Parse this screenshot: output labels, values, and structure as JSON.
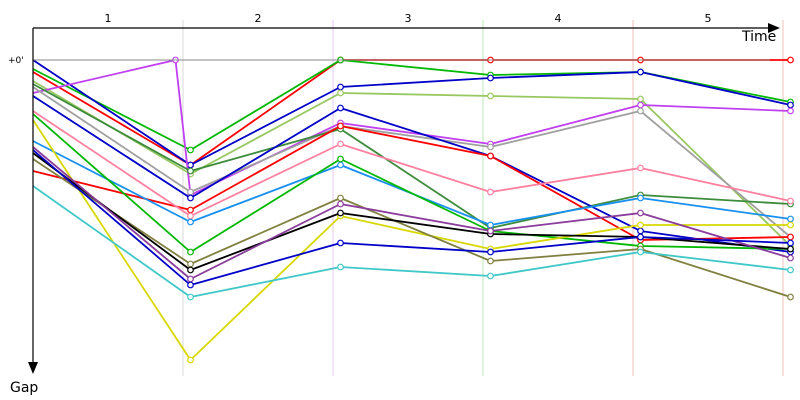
{
  "chart_data": {
    "type": "line",
    "xlabel": "Time",
    "ylabel": "Gap",
    "zero_label": "+0'",
    "laps": [
      "1",
      "2",
      "3",
      "4",
      "5"
    ],
    "x_range": [
      0,
      5.5
    ],
    "y_range": [
      0,
      100
    ],
    "lap_boundary_colors": [
      "#d8d8d8",
      "#e6c8f0",
      "#b8e8b8",
      "#f0c0c0",
      "#f0c0c0",
      "#f0c0c0"
    ],
    "series": [
      {
        "color": "#ff0000",
        "points": [
          [
            0,
            4
          ],
          [
            1.05,
            35
          ],
          [
            2.05,
            0
          ],
          [
            3.05,
            0
          ],
          [
            4.05,
            0
          ],
          [
            5.05,
            0
          ]
        ]
      },
      {
        "color": "#00b800",
        "points": [
          [
            0,
            3
          ],
          [
            1.05,
            30
          ],
          [
            2.05,
            0
          ],
          [
            3.05,
            5
          ],
          [
            4.05,
            4
          ],
          [
            5.05,
            14
          ]
        ]
      },
      {
        "color": "#0000c8",
        "points": [
          [
            0,
            0
          ],
          [
            1.05,
            35
          ],
          [
            2.05,
            9
          ],
          [
            3.05,
            6
          ],
          [
            4.05,
            4
          ],
          [
            5.05,
            15
          ]
        ]
      },
      {
        "color": "#98c860",
        "points": [
          [
            0,
            7
          ],
          [
            1.05,
            38
          ],
          [
            2.05,
            11
          ],
          [
            3.05,
            12
          ],
          [
            4.05,
            13
          ],
          [
            5.05,
            62
          ]
        ]
      },
      {
        "color": "#c040f0",
        "points": [
          [
            0,
            11
          ],
          [
            0.95,
            0
          ],
          [
            1.05,
            45
          ],
          [
            2.05,
            21
          ],
          [
            3.05,
            28
          ],
          [
            4.05,
            15
          ],
          [
            5.05,
            17
          ]
        ]
      },
      {
        "color": "#a0a0a0",
        "points": [
          [
            0,
            9
          ],
          [
            1.05,
            44
          ],
          [
            2.05,
            22
          ],
          [
            3.05,
            29
          ],
          [
            4.05,
            17
          ],
          [
            5.05,
            59
          ]
        ]
      },
      {
        "color": "#3c8c3c",
        "points": [
          [
            0,
            8
          ],
          [
            1.05,
            37
          ],
          [
            2.05,
            23
          ],
          [
            3.05,
            56
          ],
          [
            4.05,
            45
          ],
          [
            5.05,
            48
          ]
        ]
      },
      {
        "color": "#0000c8",
        "points": [
          [
            0,
            12
          ],
          [
            1.05,
            46
          ],
          [
            2.05,
            16
          ],
          [
            3.05,
            32
          ],
          [
            4.05,
            57
          ],
          [
            5.05,
            64
          ]
        ]
      },
      {
        "color": "#ff0000",
        "points": [
          [
            0,
            37
          ],
          [
            1.05,
            50
          ],
          [
            2.05,
            22
          ],
          [
            3.05,
            32
          ],
          [
            4.05,
            60
          ],
          [
            5.05,
            59
          ]
        ]
      },
      {
        "color": "#ff80a0",
        "points": [
          [
            0,
            17
          ],
          [
            1.05,
            52
          ],
          [
            2.05,
            28
          ],
          [
            3.05,
            44
          ],
          [
            4.05,
            36
          ],
          [
            5.05,
            47
          ]
        ]
      },
      {
        "color": "#1890f0",
        "points": [
          [
            0,
            27
          ],
          [
            1.05,
            54
          ],
          [
            2.05,
            35
          ],
          [
            3.05,
            55
          ],
          [
            4.05,
            46
          ],
          [
            5.05,
            53
          ]
        ]
      },
      {
        "color": "#00b800",
        "points": [
          [
            0,
            18
          ],
          [
            1.05,
            64
          ],
          [
            2.05,
            33
          ],
          [
            3.05,
            57
          ],
          [
            4.05,
            62
          ],
          [
            5.05,
            63
          ]
        ]
      },
      {
        "color": "#d8d800",
        "points": [
          [
            0,
            20
          ],
          [
            1.05,
            100
          ],
          [
            2.05,
            52
          ],
          [
            3.05,
            63
          ],
          [
            4.05,
            55
          ],
          [
            5.05,
            55
          ]
        ]
      },
      {
        "color": "#808040",
        "points": [
          [
            0,
            33
          ],
          [
            1.05,
            68
          ],
          [
            2.05,
            46
          ],
          [
            3.05,
            67
          ],
          [
            4.05,
            63
          ],
          [
            5.05,
            79
          ]
        ]
      },
      {
        "color": "#000000",
        "points": [
          [
            0,
            31
          ],
          [
            1.05,
            70
          ],
          [
            2.05,
            51
          ],
          [
            3.05,
            58
          ],
          [
            4.05,
            59
          ],
          [
            5.05,
            63
          ]
        ]
      },
      {
        "color": "#8c3c9c",
        "points": [
          [
            0,
            29
          ],
          [
            1.05,
            73
          ],
          [
            2.05,
            48
          ],
          [
            3.05,
            57
          ],
          [
            4.05,
            51
          ],
          [
            5.05,
            66
          ]
        ]
      },
      {
        "color": "#0000c8",
        "points": [
          [
            0,
            30
          ],
          [
            1.05,
            75
          ],
          [
            2.05,
            61
          ],
          [
            3.05,
            64
          ],
          [
            4.05,
            59
          ],
          [
            5.05,
            61
          ]
        ]
      },
      {
        "color": "#40c8c8",
        "points": [
          [
            0,
            42
          ],
          [
            1.05,
            79
          ],
          [
            2.05,
            69
          ],
          [
            3.05,
            72
          ],
          [
            4.05,
            64
          ],
          [
            5.05,
            70
          ]
        ]
      }
    ]
  }
}
